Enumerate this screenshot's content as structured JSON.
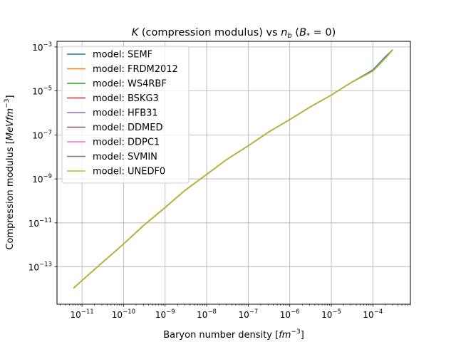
{
  "chart_data": {
    "type": "line",
    "title": {
      "pre": "K",
      "mid": " (compression modulus) vs ",
      "n": "n",
      "b": "b",
      "tail1": " (",
      "B": "B",
      "star": "*",
      "tail2": " = 0)"
    },
    "xlabel": {
      "text": "Baryon number density [",
      "unit": "fm",
      "exp": "−3",
      "close": "]"
    },
    "ylabel": {
      "text": "Compression modulus [",
      "unit": "MeVfm",
      "exp": "−3",
      "close": "]"
    },
    "xscale": "log",
    "yscale": "log",
    "xlim": [
      2.5e-12,
      0.0008
    ],
    "ylim": [
      2e-15,
      0.0018
    ],
    "grid": true,
    "legend_position": "upper left",
    "x_ticks": [
      {
        "value": 1e-11,
        "base": "10",
        "exp": "−11"
      },
      {
        "value": 1e-10,
        "base": "10",
        "exp": "−10"
      },
      {
        "value": 1e-09,
        "base": "10",
        "exp": "−9"
      },
      {
        "value": 1e-08,
        "base": "10",
        "exp": "−8"
      },
      {
        "value": 1e-07,
        "base": "10",
        "exp": "−7"
      },
      {
        "value": 1e-06,
        "base": "10",
        "exp": "−6"
      },
      {
        "value": 1e-05,
        "base": "10",
        "exp": "−5"
      },
      {
        "value": 0.0001,
        "base": "10",
        "exp": "−4"
      }
    ],
    "y_ticks": [
      {
        "value": 1e-13,
        "base": "10",
        "exp": "−13"
      },
      {
        "value": 1e-11,
        "base": "10",
        "exp": "−11"
      },
      {
        "value": 1e-09,
        "base": "10",
        "exp": "−9"
      },
      {
        "value": 1e-07,
        "base": "10",
        "exp": "−7"
      },
      {
        "value": 1e-05,
        "base": "10",
        "exp": "−5"
      },
      {
        "value": 0.001,
        "base": "10",
        "exp": "−3"
      }
    ],
    "curve_x": [
      6.3e-12,
      1e-11,
      3e-11,
      1e-10,
      3e-10,
      1e-09,
      3e-09,
      1e-08,
      3e-08,
      1e-07,
      3e-07,
      1e-06,
      3e-06,
      1e-05,
      3e-05,
      0.0001,
      0.0002,
      0.0003
    ],
    "series": [
      {
        "name": "model: SEMF",
        "color": "#1f77b4",
        "y": [
          1.1e-14,
          2.4e-14,
          1.5e-13,
          1.1e-12,
          7.5e-12,
          5e-11,
          3e-10,
          1.6e-09,
          7.5e-09,
          3.2e-08,
          1.3e-07,
          5e-07,
          1.8e-06,
          6.5e-06,
          2.4e-05,
          9e-05,
          0.00036,
          0.00075
        ]
      },
      {
        "name": "model: FRDM2012",
        "color": "#ff7f0e",
        "y": [
          1.1e-14,
          2.4e-14,
          1.5e-13,
          1.1e-12,
          7.5e-12,
          5e-11,
          3e-10,
          1.6e-09,
          7.5e-09,
          3.2e-08,
          1.3e-07,
          5e-07,
          1.8e-06,
          6.5e-06,
          2.4e-05,
          8e-05,
          0.00031,
          0.00075
        ]
      },
      {
        "name": "model: WS4RBF",
        "color": "#2ca02c",
        "y": [
          1.1e-14,
          2.4e-14,
          1.5e-13,
          1.1e-12,
          7.5e-12,
          5e-11,
          3e-10,
          1.6e-09,
          7.5e-09,
          3.2e-08,
          1.3e-07,
          5e-07,
          1.8e-06,
          6.5e-06,
          2.4e-05,
          8e-05,
          0.00031,
          0.00075
        ]
      },
      {
        "name": "model: BSKG3",
        "color": "#d62728",
        "y": [
          1.1e-14,
          2.4e-14,
          1.5e-13,
          1.1e-12,
          7.5e-12,
          5e-11,
          3e-10,
          1.6e-09,
          7.5e-09,
          3.2e-08,
          1.3e-07,
          5e-07,
          1.8e-06,
          6.5e-06,
          2.4e-05,
          8e-05,
          0.00031,
          0.00075
        ]
      },
      {
        "name": "model: HFB31",
        "color": "#9467bd",
        "y": [
          1.1e-14,
          2.4e-14,
          1.5e-13,
          1.1e-12,
          7.5e-12,
          5e-11,
          3e-10,
          1.6e-09,
          7.5e-09,
          3.2e-08,
          1.3e-07,
          5e-07,
          1.8e-06,
          6.5e-06,
          2.4e-05,
          8e-05,
          0.00031,
          0.00075
        ]
      },
      {
        "name": "model: DDMED",
        "color": "#8c564b",
        "y": [
          1.1e-14,
          2.4e-14,
          1.5e-13,
          1.1e-12,
          7.5e-12,
          5e-11,
          3e-10,
          1.6e-09,
          7.5e-09,
          3.2e-08,
          1.3e-07,
          5e-07,
          1.8e-06,
          6.5e-06,
          2.4e-05,
          8e-05,
          0.00031,
          0.00075
        ]
      },
      {
        "name": "model: DDPC1",
        "color": "#e377c2",
        "y": [
          1.1e-14,
          2.4e-14,
          1.5e-13,
          1.1e-12,
          7.5e-12,
          5e-11,
          3e-10,
          1.6e-09,
          7.5e-09,
          3.2e-08,
          1.3e-07,
          5e-07,
          1.8e-06,
          6.5e-06,
          2.4e-05,
          8e-05,
          0.00031,
          0.00075
        ]
      },
      {
        "name": "model: SVMIN",
        "color": "#7f7f7f",
        "y": [
          1.1e-14,
          2.4e-14,
          1.5e-13,
          1.1e-12,
          7.5e-12,
          5e-11,
          3e-10,
          1.6e-09,
          7.5e-09,
          3.2e-08,
          1.3e-07,
          5e-07,
          1.8e-06,
          6.5e-06,
          2.4e-05,
          8e-05,
          0.00031,
          0.00075
        ]
      },
      {
        "name": "model: UNEDF0",
        "color": "#bcbd22",
        "y": [
          1.1e-14,
          2.4e-14,
          1.5e-13,
          1.1e-12,
          7.5e-12,
          5e-11,
          3e-10,
          1.6e-09,
          7.5e-09,
          3.2e-08,
          1.3e-07,
          5e-07,
          1.8e-06,
          6.5e-06,
          2.4e-05,
          8e-05,
          0.00031,
          0.00075
        ]
      }
    ]
  }
}
